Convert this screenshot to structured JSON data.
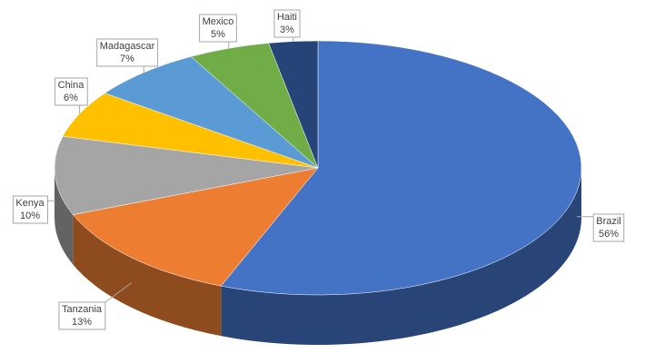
{
  "chart_data": {
    "type": "pie",
    "categories": [
      "Brazil",
      "Tanzania",
      "Kenya",
      "China",
      "Madagascar",
      "Mexico",
      "Haiti"
    ],
    "values": [
      56,
      13,
      10,
      6,
      7,
      5,
      3
    ],
    "value_labels": [
      "56%",
      "13%",
      "10%",
      "6%",
      "7%",
      "5%",
      "3%"
    ],
    "colors": [
      "#4472c4",
      "#ed7d31",
      "#a5a5a5",
      "#ffc000",
      "#5b9bd5",
      "#70ad47",
      "#264478"
    ]
  }
}
